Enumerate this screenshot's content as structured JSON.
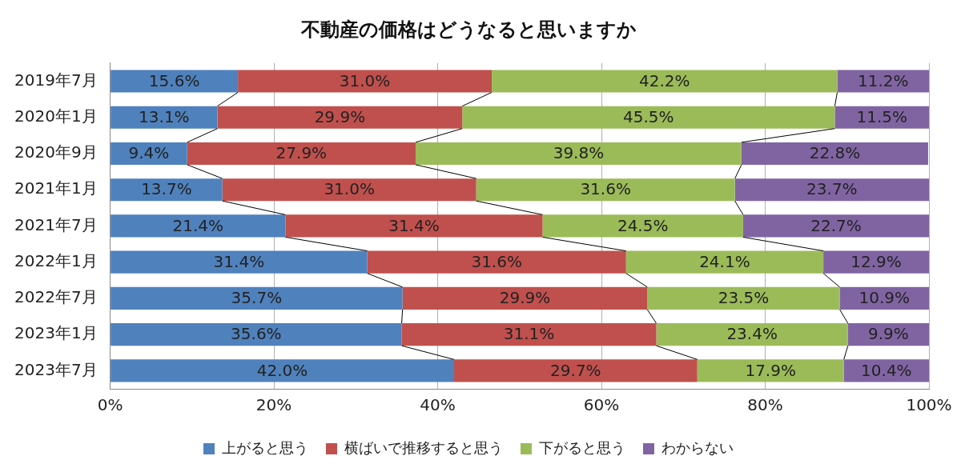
{
  "chart_data": {
    "type": "bar",
    "title": "不動産の価格はどうなると思いますか",
    "orientation": "horizontal",
    "stacked": true,
    "data_labels": true,
    "grid": true,
    "legend": "bottom",
    "categories": [
      "2019年7月",
      "2020年1月",
      "2020年9月",
      "2021年1月",
      "2021年7月",
      "2022年1月",
      "2022年7月",
      "2023年1月",
      "2023年7月"
    ],
    "series": [
      {
        "name": "上がると思う",
        "color": "#4f81bd",
        "values": [
          15.6,
          13.1,
          9.4,
          13.7,
          21.4,
          31.4,
          35.7,
          35.6,
          42.0
        ],
        "value_labels": [
          "15.6%",
          "13.1%",
          "9.4%",
          "13.7%",
          "21.4%",
          "31.4%",
          "35.7%",
          "35.6%",
          "42.0%"
        ]
      },
      {
        "name": "横ばいで推移すると思う",
        "color": "#c0504d",
        "values": [
          31.0,
          29.9,
          27.9,
          31.0,
          31.4,
          31.6,
          29.9,
          31.1,
          29.7
        ],
        "value_labels": [
          "31.0%",
          "29.9%",
          "27.9%",
          "31.0%",
          "31.4%",
          "31.6%",
          "29.9%",
          "31.1%",
          "29.7%"
        ]
      },
      {
        "name": "下がると思う",
        "color": "#9bbb59",
        "values": [
          42.2,
          45.5,
          39.8,
          31.6,
          24.5,
          24.1,
          23.5,
          23.4,
          17.9
        ],
        "value_labels": [
          "42.2%",
          "45.5%",
          "39.8%",
          "31.6%",
          "24.5%",
          "24.1%",
          "23.5%",
          "23.4%",
          "17.9%"
        ]
      },
      {
        "name": "わからない",
        "color": "#8064a2",
        "values": [
          11.2,
          11.5,
          22.8,
          23.7,
          22.7,
          12.9,
          10.9,
          9.9,
          10.4
        ],
        "value_labels": [
          "11.2%",
          "11.5%",
          "22.8%",
          "23.7%",
          "22.7%",
          "12.9%",
          "10.9%",
          "9.9%",
          "10.4%"
        ]
      }
    ],
    "xlim": [
      0,
      100
    ],
    "xticks": [
      {
        "value": 0,
        "label": "0%"
      },
      {
        "value": 20,
        "label": "20%"
      },
      {
        "value": 40,
        "label": "40%"
      },
      {
        "value": 60,
        "label": "60%"
      },
      {
        "value": 80,
        "label": "80%"
      },
      {
        "value": 100,
        "label": "100%"
      }
    ]
  }
}
